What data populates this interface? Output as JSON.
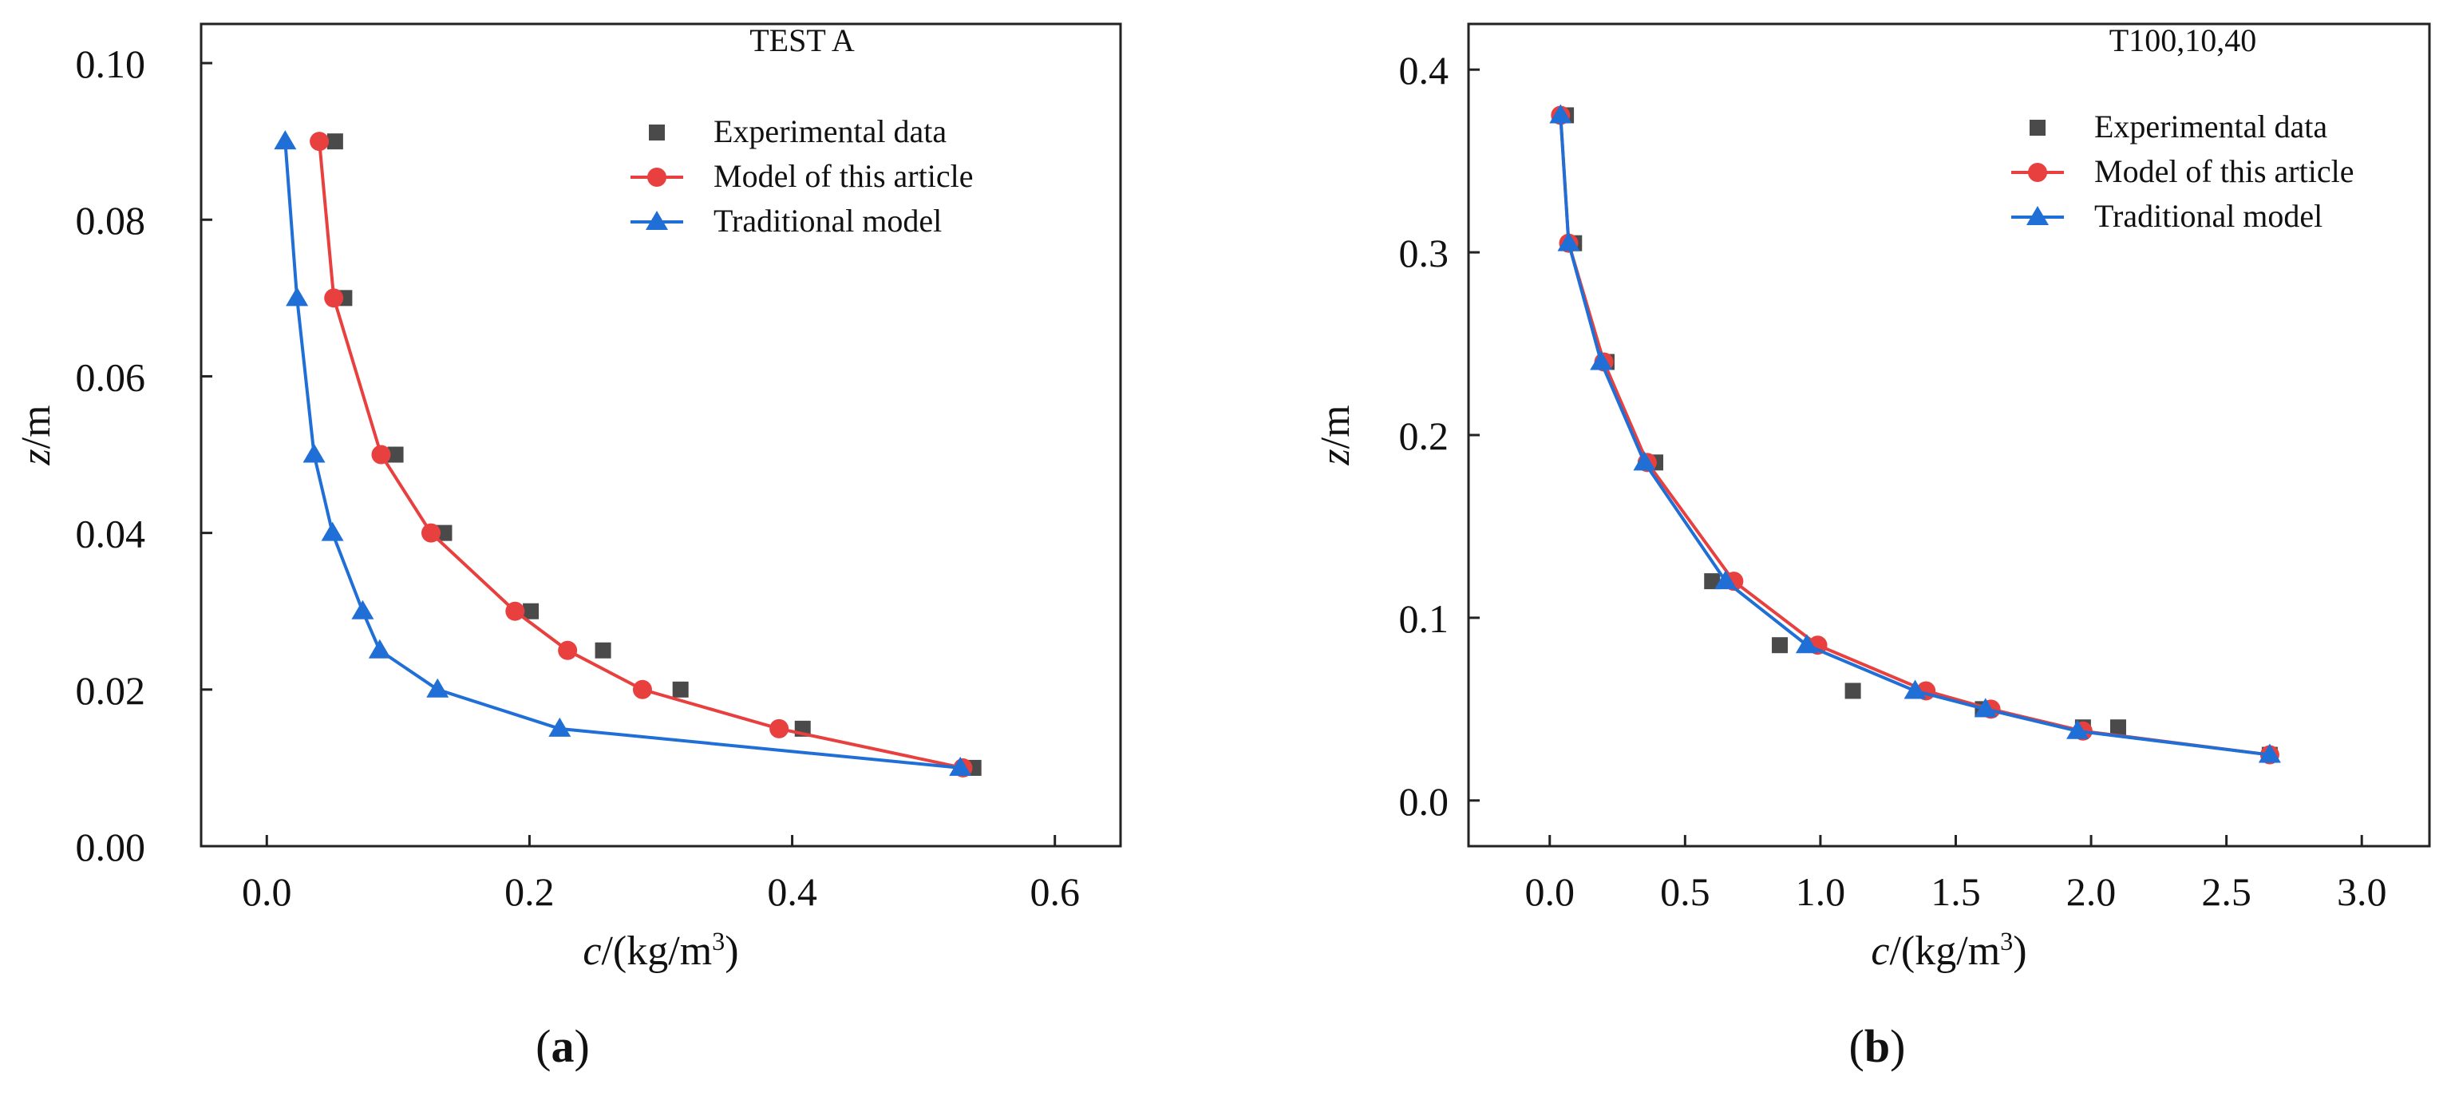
{
  "chart_data": [
    {
      "type": "line",
      "panel_label": "a",
      "title": "TEST A",
      "xlabel": "c/(kg/m3)",
      "ylabel": "z/m",
      "xlim": [
        -0.05,
        0.65
      ],
      "ylim": [
        0.0,
        0.105
      ],
      "xticks": [
        "0.0",
        "0.2",
        "0.4",
        "0.6"
      ],
      "yticks": [
        "0.00",
        "0.02",
        "0.04",
        "0.06",
        "0.08",
        "0.10"
      ],
      "legend_position": "top-right",
      "series": [
        {
          "name": "Experimental data",
          "marker": "square",
          "color": "#4a4a4a",
          "line": false,
          "x": [
            0.052,
            0.059,
            0.098,
            0.135,
            0.201,
            0.256,
            0.315,
            0.408,
            0.538
          ],
          "y": [
            0.09,
            0.07,
            0.05,
            0.04,
            0.03,
            0.025,
            0.02,
            0.015,
            0.01
          ]
        },
        {
          "name": "Model of this article",
          "marker": "circle",
          "color": "#e8403e",
          "line": true,
          "x": [
            0.04,
            0.051,
            0.087,
            0.125,
            0.189,
            0.229,
            0.286,
            0.39,
            0.53
          ],
          "y": [
            0.09,
            0.07,
            0.05,
            0.04,
            0.03,
            0.025,
            0.02,
            0.015,
            0.01
          ]
        },
        {
          "name": "Traditional model",
          "marker": "triangle",
          "color": "#1f6fd6",
          "line": true,
          "x": [
            0.014,
            0.023,
            0.036,
            0.05,
            0.073,
            0.086,
            0.13,
            0.223,
            0.528
          ],
          "y": [
            0.09,
            0.07,
            0.05,
            0.04,
            0.03,
            0.025,
            0.02,
            0.015,
            0.01
          ]
        }
      ]
    },
    {
      "type": "line",
      "panel_label": "b",
      "title": "T100,10,40",
      "xlabel": "c/(kg/m3)",
      "ylabel": "z/m",
      "xlim": [
        -0.3,
        3.25
      ],
      "ylim": [
        -0.025,
        0.425
      ],
      "xticks": [
        "0.0",
        "0.5",
        "1.0",
        "1.5",
        "2.0",
        "2.5",
        "3.0"
      ],
      "yticks": [
        "0.0",
        "0.1",
        "0.2",
        "0.3",
        "0.4"
      ],
      "legend_position": "top-right",
      "series": [
        {
          "name": "Experimental data",
          "marker": "square",
          "color": "#4a4a4a",
          "line": false,
          "x": [
            0.06,
            0.09,
            0.21,
            0.39,
            0.6,
            0.85,
            1.12,
            1.6,
            1.97,
            2.1,
            2.66
          ],
          "y": [
            0.375,
            0.305,
            0.24,
            0.185,
            0.12,
            0.085,
            0.06,
            0.05,
            0.04,
            0.04,
            0.025
          ]
        },
        {
          "name": "Model of this article",
          "marker": "circle",
          "color": "#e8403e",
          "line": true,
          "x": [
            0.04,
            0.07,
            0.2,
            0.36,
            0.68,
            0.99,
            1.39,
            1.63,
            1.97,
            2.66
          ],
          "y": [
            0.375,
            0.305,
            0.24,
            0.185,
            0.12,
            0.085,
            0.06,
            0.05,
            0.038,
            0.025
          ]
        },
        {
          "name": "Traditional model",
          "marker": "triangle",
          "color": "#1f6fd6",
          "line": true,
          "x": [
            0.04,
            0.07,
            0.19,
            0.35,
            0.65,
            0.95,
            1.35,
            1.61,
            1.95,
            2.66
          ],
          "y": [
            0.375,
            0.305,
            0.24,
            0.185,
            0.12,
            0.085,
            0.06,
            0.05,
            0.038,
            0.025
          ]
        }
      ]
    }
  ]
}
